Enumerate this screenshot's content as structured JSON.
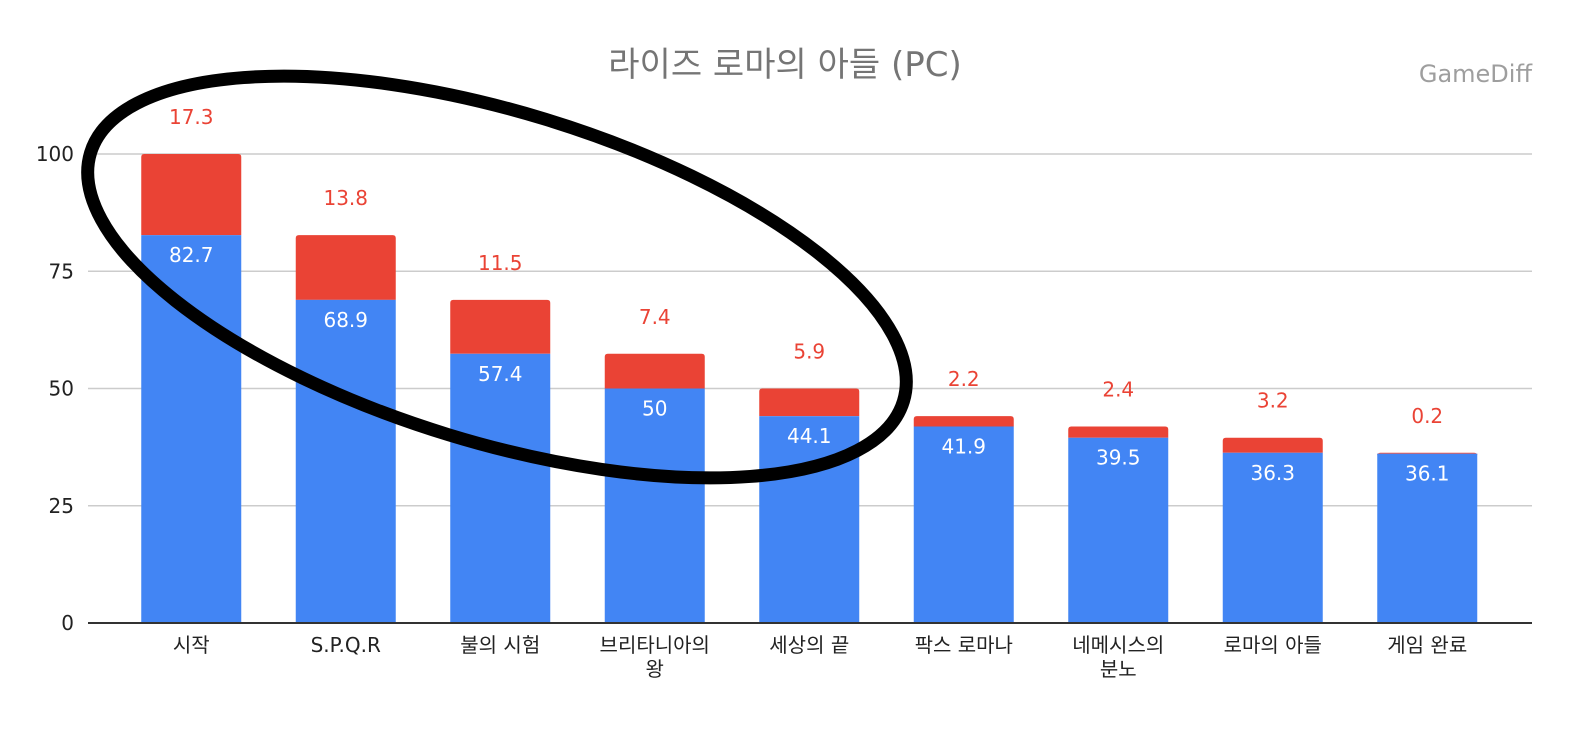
{
  "chart_data": {
    "type": "bar",
    "stacked": true,
    "title": "라이즈 로마의 아들 (PC)",
    "watermark": "GameDiff",
    "categories": [
      [
        "시작"
      ],
      [
        "S.P.Q.R"
      ],
      [
        "불의 시험"
      ],
      [
        "브리타니아의",
        "왕"
      ],
      [
        "세상의 끝"
      ],
      [
        "팍스 로마나"
      ],
      [
        "네메시스의",
        "분노"
      ],
      [
        "로마의 아들"
      ],
      [
        "게임 완료"
      ]
    ],
    "series": [
      {
        "values": [
          82.7,
          68.9,
          57.4,
          50,
          44.1,
          41.9,
          39.5,
          36.3,
          36.1
        ],
        "labels": [
          "82.7",
          "68.9",
          "57.4",
          "50",
          "44.1",
          "41.9",
          "39.5",
          "36.3",
          "36.1"
        ],
        "color": "#4285f4"
      },
      {
        "values": [
          17.3,
          13.8,
          11.5,
          7.4,
          5.9,
          2.2,
          2.4,
          3.2,
          0.2
        ],
        "labels": [
          "17.3",
          "13.8",
          "11.5",
          "7.4",
          "5.9",
          "2.2",
          "2.4",
          "3.2",
          "0.2"
        ],
        "color": "#ea4335"
      }
    ],
    "yticks": [
      "0",
      "25",
      "50",
      "75",
      "100"
    ],
    "ylim": [
      0,
      115
    ],
    "xlabel": "",
    "ylabel": "",
    "grid": true,
    "legend": "none",
    "annotation": "black ellipse hand-drawn around the first five bars"
  }
}
